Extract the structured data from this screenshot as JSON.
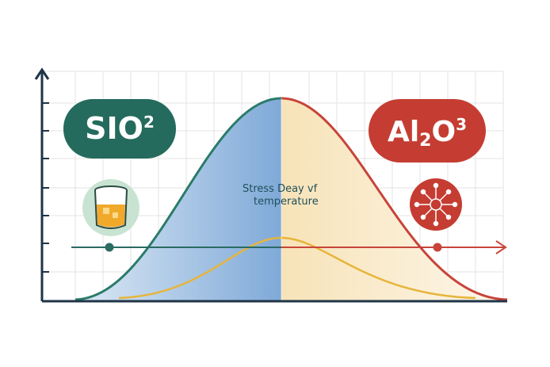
{
  "labels": {
    "left": {
      "text": "SIO",
      "sup": "2"
    },
    "right": {
      "text": "Al",
      "sub": "2",
      "text2": "O",
      "sup": "3"
    }
  },
  "annotation": [
    "Stress Deay vf",
    "temperature"
  ]
}
